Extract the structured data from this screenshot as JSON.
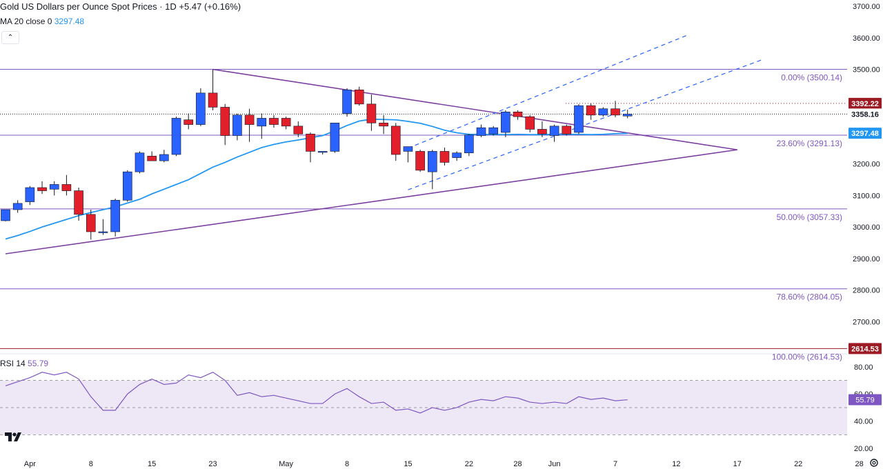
{
  "legend": {
    "title": "Gold US Dollars per Ounce Spot Prices · 1D",
    "change": "+5.47",
    "change_pct": "(+0.16%)",
    "ma_label": "MA 20 close 0",
    "ma_value": "3297.48",
    "rsi_label": "RSI 14",
    "rsi_value": "55.79"
  },
  "colors": {
    "up": "#2962ff",
    "down": "#e2202b",
    "ma": "#2196f3",
    "trend": "#7b3fa0",
    "fib": "#7e57c2",
    "rsi": "#7e57c2",
    "rsi_band": "#ede7f6",
    "price_badge": "#9c1b24",
    "ma_badge": "#2196f3"
  },
  "chart_data": [
    {
      "type": "candlestick",
      "title": "Gold US Dollars per Ounce Spot Prices · 1D",
      "ylim": [
        2600,
        3720
      ],
      "yticks": [
        2700,
        2800,
        2900,
        3000,
        3100,
        3200,
        3300,
        3400,
        3500,
        3600,
        3700
      ],
      "ytick_labels": [
        "2700.00",
        "2800.00",
        "2900.00",
        "3000.00",
        "3100.00",
        "3200.00",
        "3300.00",
        "3400.00",
        "3500.00",
        "3600.00",
        "3700.00"
      ],
      "xticks": [
        {
          "label": "Apr",
          "i": 2
        },
        {
          "label": "8",
          "i": 7
        },
        {
          "label": "15",
          "i": 12
        },
        {
          "label": "23",
          "i": 17
        },
        {
          "label": "May",
          "i": 23
        },
        {
          "label": "8",
          "i": 28
        },
        {
          "label": "15",
          "i": 33
        },
        {
          "label": "22",
          "i": 38
        },
        {
          "label": "28",
          "i": 42
        },
        {
          "label": "Jun",
          "i": 45
        },
        {
          "label": "7",
          "i": 50
        },
        {
          "label": "12",
          "i": 55
        },
        {
          "label": "17",
          "i": 60
        },
        {
          "label": "22",
          "i": 65
        },
        {
          "label": "28",
          "i": 70
        }
      ],
      "candles": [
        {
          "o": 3020,
          "h": 3050,
          "l": 3018,
          "c": 3055
        },
        {
          "o": 3055,
          "h": 3085,
          "l": 3045,
          "c": 3075
        },
        {
          "o": 3080,
          "h": 3130,
          "l": 3070,
          "c": 3125
        },
        {
          "o": 3125,
          "h": 3145,
          "l": 3105,
          "c": 3115
        },
        {
          "o": 3120,
          "h": 3145,
          "l": 3100,
          "c": 3135
        },
        {
          "o": 3135,
          "h": 3165,
          "l": 3100,
          "c": 3115
        },
        {
          "o": 3115,
          "h": 3125,
          "l": 3020,
          "c": 3040
        },
        {
          "o": 3040,
          "h": 3055,
          "l": 2960,
          "c": 2985
        },
        {
          "o": 2985,
          "h": 3025,
          "l": 2975,
          "c": 2985
        },
        {
          "o": 2985,
          "h": 3090,
          "l": 2970,
          "c": 3085
        },
        {
          "o": 3085,
          "h": 3180,
          "l": 3080,
          "c": 3175
        },
        {
          "o": 3175,
          "h": 3240,
          "l": 3170,
          "c": 3235
        },
        {
          "o": 3225,
          "h": 3240,
          "l": 3210,
          "c": 3210
        },
        {
          "o": 3210,
          "h": 3245,
          "l": 3205,
          "c": 3230
        },
        {
          "o": 3230,
          "h": 3350,
          "l": 3225,
          "c": 3345
        },
        {
          "o": 3340,
          "h": 3360,
          "l": 3310,
          "c": 3325
        },
        {
          "o": 3325,
          "h": 3440,
          "l": 3320,
          "c": 3425
        },
        {
          "o": 3425,
          "h": 3500,
          "l": 3370,
          "c": 3380
        },
        {
          "o": 3380,
          "h": 3390,
          "l": 3260,
          "c": 3290
        },
        {
          "o": 3290,
          "h": 3360,
          "l": 3275,
          "c": 3355
        },
        {
          "o": 3355,
          "h": 3375,
          "l": 3270,
          "c": 3325
        },
        {
          "o": 3320,
          "h": 3360,
          "l": 3280,
          "c": 3345
        },
        {
          "o": 3345,
          "h": 3355,
          "l": 3315,
          "c": 3325
        },
        {
          "o": 3345,
          "h": 3350,
          "l": 3310,
          "c": 3320
        },
        {
          "o": 3320,
          "h": 3335,
          "l": 3285,
          "c": 3295
        },
        {
          "o": 3295,
          "h": 3300,
          "l": 3205,
          "c": 3240
        },
        {
          "o": 3240,
          "h": 3240,
          "l": 3230,
          "c": 3240
        },
        {
          "o": 3240,
          "h": 3330,
          "l": 3235,
          "c": 3330
        },
        {
          "o": 3360,
          "h": 3440,
          "l": 3350,
          "c": 3435
        },
        {
          "o": 3435,
          "h": 3445,
          "l": 3385,
          "c": 3390
        },
        {
          "o": 3390,
          "h": 3420,
          "l": 3305,
          "c": 3330
        },
        {
          "o": 3330,
          "h": 3355,
          "l": 3295,
          "c": 3320
        },
        {
          "o": 3320,
          "h": 3330,
          "l": 3210,
          "c": 3230
        },
        {
          "o": 3240,
          "h": 3255,
          "l": 3205,
          "c": 3255
        },
        {
          "o": 3240,
          "h": 3245,
          "l": 3175,
          "c": 3180
        },
        {
          "o": 3175,
          "h": 3245,
          "l": 3120,
          "c": 3240
        },
        {
          "o": 3240,
          "h": 3252,
          "l": 3195,
          "c": 3205
        },
        {
          "o": 3220,
          "h": 3240,
          "l": 3210,
          "c": 3235
        },
        {
          "o": 3235,
          "h": 3295,
          "l": 3225,
          "c": 3292
        },
        {
          "o": 3290,
          "h": 3325,
          "l": 3285,
          "c": 3315
        },
        {
          "o": 3295,
          "h": 3320,
          "l": 3290,
          "c": 3315
        },
        {
          "o": 3300,
          "h": 3370,
          "l": 3285,
          "c": 3365
        },
        {
          "o": 3365,
          "h": 3370,
          "l": 3340,
          "c": 3350
        },
        {
          "o": 3350,
          "h": 3355,
          "l": 3300,
          "c": 3310
        },
        {
          "o": 3310,
          "h": 3335,
          "l": 3285,
          "c": 3295
        },
        {
          "o": 3290,
          "h": 3325,
          "l": 3270,
          "c": 3320
        },
        {
          "o": 3320,
          "h": 3325,
          "l": 3290,
          "c": 3295
        },
        {
          "o": 3300,
          "h": 3390,
          "l": 3295,
          "c": 3385
        },
        {
          "o": 3385,
          "h": 3392,
          "l": 3340,
          "c": 3355
        },
        {
          "o": 3355,
          "h": 3380,
          "l": 3350,
          "c": 3375
        },
        {
          "o": 3375,
          "h": 3400,
          "l": 3348,
          "c": 3355
        },
        {
          "o": 3352,
          "h": 3372,
          "l": 3345,
          "c": 3358
        }
      ],
      "ma20": [
        2962,
        2973,
        2986,
        3000,
        3012,
        3024,
        3036,
        3046,
        3055,
        3064,
        3076,
        3088,
        3105,
        3120,
        3135,
        3150,
        3170,
        3190,
        3205,
        3222,
        3237,
        3252,
        3262,
        3270,
        3276,
        3283,
        3290,
        3305,
        3322,
        3336,
        3342,
        3341,
        3340,
        3335,
        3329,
        3319,
        3307,
        3299,
        3294,
        3294,
        3293,
        3293,
        3294,
        3293,
        3293,
        3294,
        3294,
        3294,
        3293,
        3294,
        3296,
        3297
      ],
      "fib_levels": [
        {
          "label": "0.00% (3500.14)",
          "value": 3500.14
        },
        {
          "label": "23.60% (3291.13)",
          "value": 3291.13
        },
        {
          "label": "50.00% (3057.33)",
          "value": 3057.33
        },
        {
          "label": "78.60% (2804.05)",
          "value": 2804.05
        },
        {
          "label": "100.00% (2614.53)",
          "value": 2614.53
        }
      ],
      "price_badges": [
        {
          "label": "3392.22",
          "value": 3392.22,
          "kind": "price"
        },
        {
          "label": "3358.16",
          "value": 3358.16,
          "kind": "price-light"
        },
        {
          "label": "3297.48",
          "value": 3297.48,
          "kind": "ma"
        },
        {
          "label": "2614.53",
          "value": 2614.53,
          "kind": "price"
        }
      ],
      "trendlines": [
        {
          "from": [
            17,
            3500
          ],
          "to": [
            60,
            3245
          ]
        },
        {
          "from": [
            0,
            2915
          ],
          "to": [
            60,
            3245
          ]
        }
      ],
      "channel_lines": [
        {
          "from": [
            33,
            3250
          ],
          "to": [
            56,
            3610
          ]
        },
        {
          "from": [
            33,
            3118
          ],
          "to": [
            62,
            3530
          ]
        }
      ]
    },
    {
      "type": "line",
      "title": "RSI 14",
      "ylim": [
        15,
        88
      ],
      "yticks": [
        20,
        40,
        60,
        80
      ],
      "ytick_labels": [
        "20.00",
        "40.00",
        "60.00",
        "80.00"
      ],
      "band": [
        30,
        70
      ],
      "midline": 50,
      "values": [
        66,
        69,
        72,
        76,
        74,
        76,
        71,
        58,
        48,
        48,
        60,
        67,
        71,
        67,
        68,
        74,
        72,
        76,
        70,
        59,
        61,
        58,
        59,
        57,
        55,
        53,
        53,
        60,
        64,
        58,
        53,
        54,
        48,
        49,
        46,
        50,
        48,
        50,
        54,
        56,
        55,
        58,
        57,
        54,
        53,
        54,
        53,
        58,
        56,
        57,
        55,
        55.79
      ]
    }
  ]
}
